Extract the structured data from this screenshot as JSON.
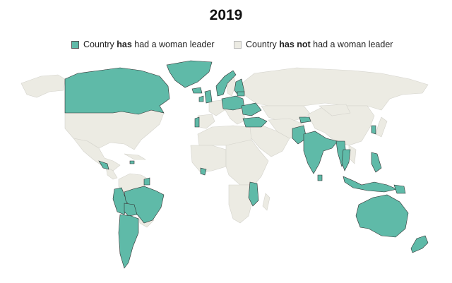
{
  "title": "2019",
  "legend": [
    {
      "pre": "Country ",
      "bold": "has",
      "post": " had a woman leader",
      "color": "#5fbaa8"
    },
    {
      "pre": "Country ",
      "bold": "has not",
      "post": " had a woman leader",
      "color": "#ecebe3"
    }
  ],
  "colors": {
    "has": "#5fbaa8",
    "has_not": "#ecebe3",
    "border": "#2f2f2f",
    "land_border": "#d4d3cc"
  },
  "countries_with_woman_leader": [
    "Canada",
    "Greenland",
    "Iceland",
    "Norway",
    "Finland",
    "United Kingdom",
    "Ireland",
    "Germany",
    "Poland",
    "Lithuania",
    "Ukraine",
    "Romania",
    "Turkey",
    "Portugal",
    "India",
    "Pakistan",
    "Bangladesh",
    "Sri Lanka",
    "Myanmar",
    "Thailand",
    "Philippines",
    "Indonesia",
    "South Korea",
    "Kyrgyzstan",
    "Australia",
    "New Zealand",
    "Brazil",
    "Argentina",
    "Chile",
    "Bolivia",
    "Peru",
    "Ecuador",
    "Panama",
    "Costa Rica",
    "Jamaica",
    "Liberia",
    "Malawi",
    "Mozambique",
    "Guyana",
    "Papua New Guinea"
  ]
}
